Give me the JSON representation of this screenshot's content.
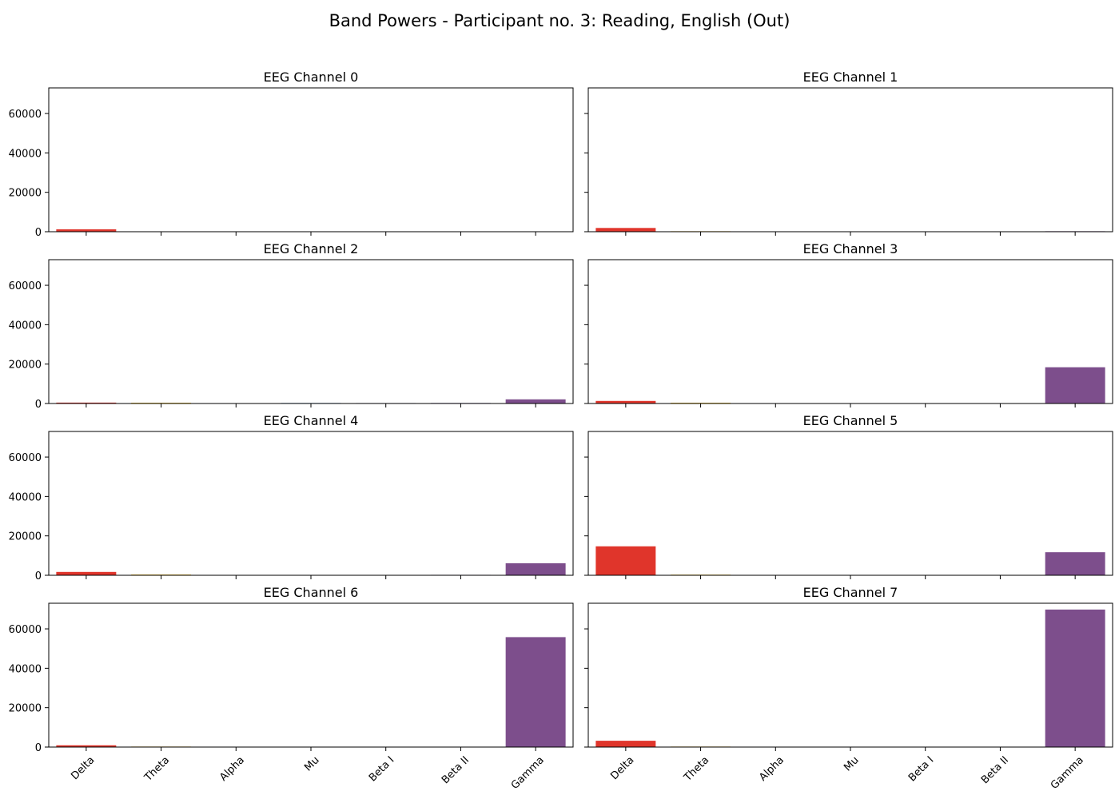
{
  "figure": {
    "suptitle": "Band Powers - Participant no. 3: Reading, English (Out)"
  },
  "chart_data": {
    "type": "bar",
    "categories": [
      "Delta",
      "Theta",
      "Alpha",
      "Mu",
      "Beta I",
      "Beta II",
      "Gamma"
    ],
    "ylim": [
      0,
      73000
    ],
    "yticks": [
      0,
      20000,
      40000,
      60000
    ],
    "grid": false,
    "colors": [
      "#e0352b",
      "#f0b400",
      "#2a9d8f",
      "#1f6fb2",
      "#3c3f8f",
      "#4b2e83",
      "#7d4e8c"
    ],
    "panels": [
      {
        "title": "EEG Channel 0",
        "values": [
          1200,
          60,
          20,
          40,
          30,
          25,
          30
        ]
      },
      {
        "title": "EEG Channel 1",
        "values": [
          1900,
          250,
          60,
          180,
          150,
          180,
          250
        ]
      },
      {
        "title": "EEG Channel 2",
        "values": [
          450,
          350,
          50,
          250,
          220,
          250,
          2100
        ]
      },
      {
        "title": "EEG Channel 3",
        "values": [
          1300,
          350,
          150,
          200,
          180,
          200,
          18400
        ]
      },
      {
        "title": "EEG Channel 4",
        "values": [
          1700,
          350,
          60,
          200,
          180,
          220,
          6100
        ]
      },
      {
        "title": "EEG Channel 5",
        "values": [
          14700,
          300,
          150,
          180,
          160,
          200,
          11700
        ]
      },
      {
        "title": "EEG Channel 6",
        "values": [
          900,
          250,
          150,
          150,
          130,
          160,
          55800
        ]
      },
      {
        "title": "EEG Channel 7",
        "values": [
          3200,
          250,
          150,
          150,
          130,
          160,
          69800
        ]
      }
    ]
  }
}
